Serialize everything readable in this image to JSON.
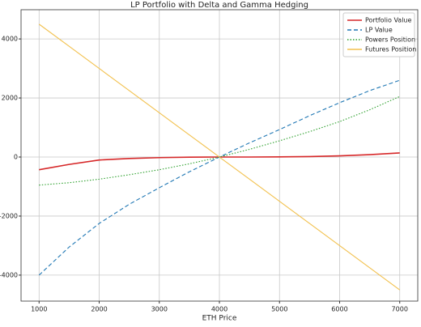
{
  "chart_data": {
    "type": "line",
    "title": "LP Portfolio with Delta and Gamma Hedging",
    "x_label": "ETH Price",
    "x": [
      1000,
      1500,
      2000,
      2500,
      3000,
      3500,
      4000,
      4500,
      5000,
      5500,
      6000,
      6500,
      7000
    ],
    "series": [
      {
        "name": "Portfolio Value",
        "color": "#d62728",
        "linestyle": "-",
        "values": [
          -430,
          -250,
          -100,
          -50,
          -20,
          -5,
          0,
          0,
          5,
          15,
          40,
          80,
          140
        ]
      },
      {
        "name": "LP Value",
        "color": "#1f77b4",
        "linestyle": "--",
        "values": [
          -4000,
          -3050,
          -2250,
          -1600,
          -1040,
          -500,
          0,
          480,
          930,
          1400,
          1840,
          2250,
          2600
        ]
      },
      {
        "name": "Powers Position",
        "color": "#2ca02c",
        "linestyle": ":",
        "values": [
          -950,
          -870,
          -750,
          -600,
          -430,
          -230,
          0,
          260,
          550,
          860,
          1200,
          1600,
          2050
        ]
      },
      {
        "name": "Futures Position",
        "color": "#f2c14e",
        "linestyle": "-",
        "values": [
          4500,
          3750,
          3000,
          2250,
          1500,
          750,
          0,
          -750,
          -1500,
          -2250,
          -3000,
          -3750,
          -4500
        ]
      }
    ],
    "xlim": [
      700,
      7300
    ],
    "ylim": [
      -4880,
      4990
    ],
    "xticks": [
      1000,
      2000,
      3000,
      4000,
      5000,
      6000,
      7000
    ],
    "yticks": [
      -4000,
      -2000,
      0,
      2000,
      4000
    ],
    "grid": true,
    "legend": "upper right"
  }
}
